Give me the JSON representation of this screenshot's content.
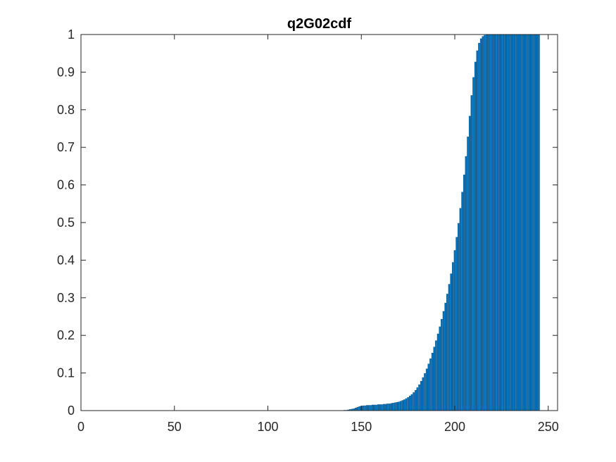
{
  "chart_data": {
    "type": "bar",
    "title": "q2G02cdf",
    "xlabel": "",
    "ylabel": "",
    "xlim": [
      0,
      255
    ],
    "ylim": [
      0,
      1
    ],
    "xticks": [
      0,
      50,
      100,
      150,
      200,
      250
    ],
    "yticks": [
      0,
      0.1,
      0.2,
      0.3,
      0.4,
      0.5,
      0.6,
      0.7,
      0.8,
      0.9,
      1
    ],
    "xtick_labels": [
      "0",
      "50",
      "100",
      "150",
      "200",
      "250"
    ],
    "ytick_labels": [
      "0",
      "0.1",
      "0.2",
      "0.3",
      "0.4",
      "0.5",
      "0.6",
      "0.7",
      "0.8",
      "0.9",
      "1"
    ],
    "grid": false,
    "legend": "none",
    "bar_color": "#0072BD",
    "x_start": 1,
    "values": [
      0,
      0,
      0,
      0,
      0,
      0,
      0,
      0,
      0,
      0,
      0,
      0,
      0,
      0,
      0,
      0,
      0,
      0,
      0,
      0,
      0,
      0,
      0,
      0,
      0,
      0,
      0,
      0,
      0,
      0,
      0,
      0,
      0,
      0,
      0,
      0,
      0,
      0,
      0,
      0,
      0,
      0,
      0,
      0,
      0,
      0,
      0,
      0,
      0,
      0,
      0,
      0,
      0,
      0,
      0,
      0,
      0,
      0,
      0,
      0,
      0,
      0,
      0,
      0,
      0,
      0,
      0,
      0,
      0,
      0,
      0,
      0,
      0,
      0,
      0,
      0,
      0,
      0,
      0,
      0,
      0,
      0,
      0,
      0,
      0,
      0,
      0,
      0,
      0,
      0,
      0,
      0,
      0,
      0,
      0,
      0,
      0,
      0,
      0,
      0,
      0,
      0,
      0,
      0,
      0,
      0,
      0,
      0,
      0,
      0,
      0,
      0,
      0,
      0,
      0,
      0,
      0,
      0,
      0,
      0,
      0,
      0,
      0,
      0,
      0,
      0,
      0,
      0,
      0,
      0,
      0,
      0,
      0,
      0,
      0,
      0,
      0,
      0,
      0,
      0,
      0.001,
      0.001,
      0.002,
      0.003,
      0.004,
      0.005,
      0.007,
      0.009,
      0.011,
      0.012,
      0.013,
      0.013,
      0.014,
      0.014,
      0.014,
      0.015,
      0.015,
      0.015,
      0.016,
      0.016,
      0.016,
      0.017,
      0.017,
      0.018,
      0.018,
      0.019,
      0.02,
      0.021,
      0.022,
      0.023,
      0.025,
      0.027,
      0.029,
      0.032,
      0.035,
      0.039,
      0.043,
      0.048,
      0.054,
      0.061,
      0.069,
      0.078,
      0.088,
      0.099,
      0.111,
      0.124,
      0.138,
      0.153,
      0.169,
      0.186,
      0.204,
      0.223,
      0.243,
      0.264,
      0.286,
      0.31,
      0.336,
      0.364,
      0.394,
      0.426,
      0.461,
      0.498,
      0.538,
      0.581,
      0.627,
      0.676,
      0.728,
      0.783,
      0.838,
      0.886,
      0.927,
      0.957,
      0.977,
      0.989,
      0.995,
      0.998,
      0.999,
      1,
      1,
      1,
      1,
      1,
      1,
      1,
      1,
      1,
      1,
      1,
      1,
      1,
      1,
      1,
      1,
      1,
      1,
      1,
      1,
      1,
      1,
      1,
      1,
      1,
      1,
      1,
      1
    ]
  }
}
